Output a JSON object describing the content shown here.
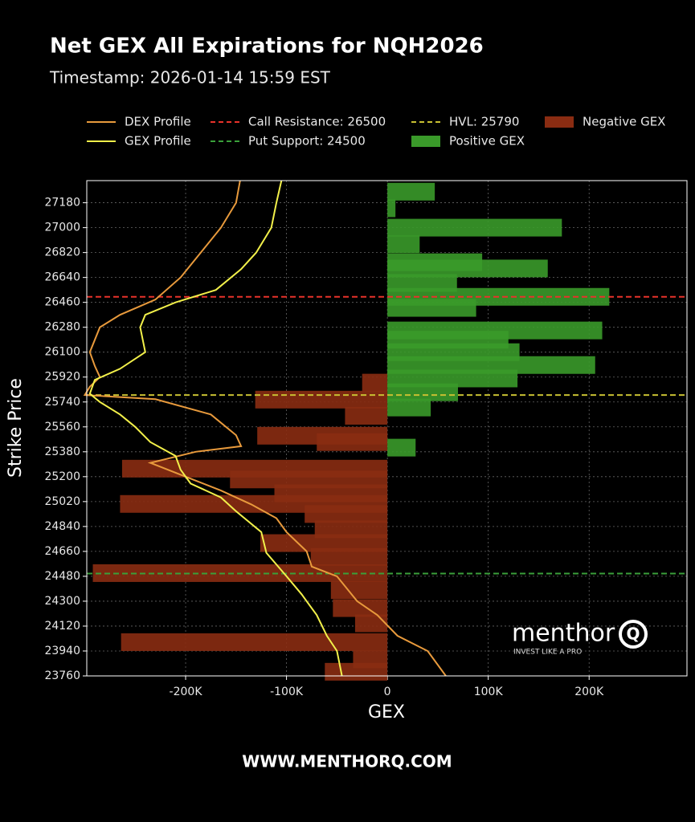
{
  "chart_data": {
    "type": "gex-profile",
    "title": "Net GEX All Expirations for NQH2026",
    "subtitle": "Timestamp: 2026-01-14 15:59 EST",
    "xlabel": "GEX",
    "ylabel": "Strike Price",
    "xlim": [
      -298000,
      297000
    ],
    "ylim": [
      23760,
      27340
    ],
    "xticks": [
      {
        "value": -200000,
        "label": "-200K"
      },
      {
        "value": -100000,
        "label": "-100K"
      },
      0,
      {
        "value": 100000,
        "label": "100K"
      },
      {
        "value": 200000,
        "label": "200K"
      }
    ],
    "yticks": [
      23760,
      23940,
      24120,
      24300,
      24480,
      24660,
      24840,
      25020,
      25200,
      25380,
      25560,
      25740,
      25920,
      26100,
      26280,
      26460,
      26640,
      26820,
      27000,
      27180
    ],
    "grid": true,
    "bars": [
      {
        "name": "Negative GEX",
        "color": "#8a2c12",
        "strikes": [
          25880,
          25757,
          25640,
          25496,
          25450,
          25258,
          25180,
          25080,
          25003,
          24930,
          24820,
          24720,
          24620,
          24503,
          24380,
          24250,
          24140,
          24004,
          23880,
          23790
        ],
        "values": [
          -25000,
          -131000,
          -42000,
          -129000,
          -70000,
          -263000,
          -156000,
          -112000,
          -265000,
          -82000,
          -72000,
          -126000,
          -76000,
          -292000,
          -56000,
          -54000,
          -32000,
          -264000,
          -34000,
          -62000
        ]
      },
      {
        "name": "Positive GEX",
        "color": "#3a9a2a",
        "strikes": [
          27260,
          27140,
          27000,
          26880,
          26750,
          26705,
          26600,
          26500,
          26420,
          26257,
          26190,
          26100,
          26007,
          25910,
          25810,
          25700,
          25410
        ],
        "values": [
          47000,
          8000,
          173000,
          32000,
          94000,
          159000,
          69000,
          220000,
          88000,
          213000,
          120000,
          131000,
          206000,
          129000,
          70000,
          43000,
          28000
        ]
      }
    ],
    "lines": [
      {
        "name": "DEX Profile",
        "color": "#e89a3c",
        "strikes": [
          27340,
          27180,
          27000,
          26820,
          26640,
          26480,
          26370,
          26280,
          26100,
          26000,
          25920,
          25850,
          25790,
          25760,
          25650,
          25500,
          25420,
          25380,
          25300,
          25200,
          25100,
          25000,
          24900,
          24800,
          24660,
          24550,
          24480,
          24300,
          24200,
          24050,
          23940,
          23760
        ],
        "values": [
          -146000,
          -150000,
          -165000,
          -185000,
          -205000,
          -230000,
          -265000,
          -285000,
          -295000,
          -290000,
          -285000,
          -295000,
          -300000,
          -230000,
          -175000,
          -150000,
          -145000,
          -190000,
          -235000,
          -200000,
          -165000,
          -135000,
          -110000,
          -100000,
          -80000,
          -75000,
          -50000,
          -30000,
          -10000,
          10000,
          40000,
          58000
        ]
      },
      {
        "name": "GEX Profile",
        "color": "#f2f04a",
        "strikes": [
          27340,
          27180,
          27000,
          26820,
          26700,
          26550,
          26460,
          26370,
          26280,
          26100,
          25980,
          25900,
          25800,
          25740,
          25650,
          25560,
          25450,
          25350,
          25250,
          25150,
          25050,
          24950,
          24800,
          24650,
          24480,
          24350,
          24200,
          24050,
          23940,
          23760
        ],
        "values": [
          -105000,
          -110000,
          -115000,
          -130000,
          -145000,
          -170000,
          -210000,
          -240000,
          -245000,
          -240000,
          -265000,
          -290000,
          -295000,
          -285000,
          -265000,
          -250000,
          -235000,
          -210000,
          -205000,
          -195000,
          -165000,
          -150000,
          -125000,
          -120000,
          -100000,
          -85000,
          -70000,
          -60000,
          -50000,
          -45000
        ]
      }
    ],
    "levels": [
      {
        "label": "Call Resistance: 26500",
        "value": 26500,
        "color": "#e8322a"
      },
      {
        "label": "Put Support: 24500",
        "value": 24500,
        "color": "#3aa03a"
      },
      {
        "label": "HVL: 25790",
        "value": 25790,
        "color": "#c8c032"
      }
    ],
    "watermark": {
      "brand": "menthor",
      "logo": "Q",
      "tagline": "INVEST LIKE A PRO"
    },
    "footer": "WWW.MENTHORQ.COM"
  }
}
